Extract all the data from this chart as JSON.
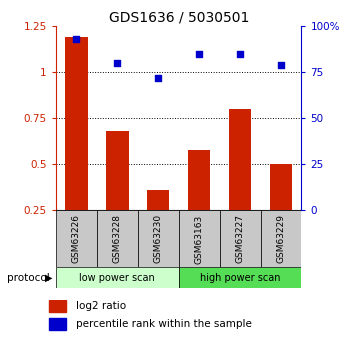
{
  "title": "GDS1636 / 5030501",
  "categories": [
    "GSM63226",
    "GSM63228",
    "GSM63230",
    "GSM63163",
    "GSM63227",
    "GSM63229"
  ],
  "bar_values": [
    1.19,
    0.68,
    0.36,
    0.58,
    0.8,
    0.5
  ],
  "scatter_values_pct": [
    93,
    80,
    72,
    85,
    85,
    79
  ],
  "bar_color": "#cc2200",
  "scatter_color": "#0000cc",
  "ylim_left": [
    0.25,
    1.25
  ],
  "ylim_right": [
    0,
    100
  ],
  "yticks_left": [
    0.25,
    0.5,
    0.75,
    1.0,
    1.25
  ],
  "ytick_labels_left": [
    "0.25",
    "0.5",
    "0.75",
    "1",
    "1.25"
  ],
  "yticks_right": [
    0,
    25,
    50,
    75,
    100
  ],
  "ytick_labels_right": [
    "0",
    "25",
    "50",
    "75",
    "100%"
  ],
  "dotted_lines": [
    0.5,
    0.75,
    1.0
  ],
  "protocol_labels": [
    "low power scan",
    "high power scan"
  ],
  "protocol_colors": [
    "#ccffcc",
    "#55dd55"
  ],
  "legend_items": [
    {
      "label": "log2 ratio",
      "color": "#cc2200"
    },
    {
      "label": "percentile rank within the sample",
      "color": "#0000cc"
    }
  ],
  "bar_width": 0.55,
  "scatter_marker": "s",
  "scatter_size": 22,
  "label_box_color": "#c8c8c8"
}
